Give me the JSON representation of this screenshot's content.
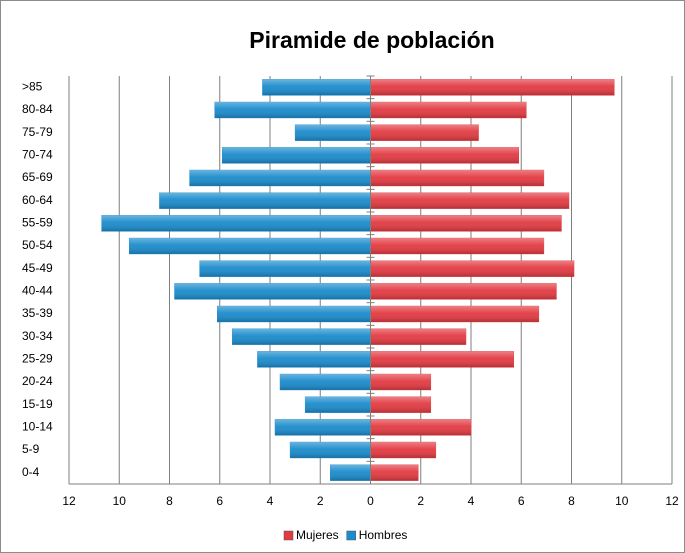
{
  "chart_data": {
    "type": "bar",
    "orientation": "horizontal",
    "title": "Piramide de población",
    "categories": [
      ">85",
      "80-84",
      "75-79",
      "70-74",
      "65-69",
      "60-64",
      "55-59",
      "50-54",
      "45-49",
      "40-44",
      "35-39",
      "30-34",
      "25-29",
      "20-24",
      "15-19",
      "10-14",
      "5-9",
      "0-4"
    ],
    "series": [
      {
        "name": "Mujeres",
        "color": "#e23a41",
        "values": [
          9.7,
          6.2,
          4.3,
          5.9,
          6.9,
          7.9,
          7.6,
          6.9,
          8.1,
          7.4,
          6.7,
          3.8,
          5.7,
          2.4,
          2.4,
          4.0,
          2.6,
          1.9
        ]
      },
      {
        "name": "Hombres",
        "color": "#1a8bcc",
        "values": [
          -4.3,
          -6.2,
          -3.0,
          -5.9,
          -7.2,
          -8.4,
          -10.7,
          -9.6,
          -6.8,
          -7.8,
          -6.1,
          -5.5,
          -4.5,
          -3.6,
          -2.6,
          -3.8,
          -3.2,
          -1.6
        ]
      }
    ],
    "xlim": [
      -12,
      12
    ],
    "xticks": [
      {
        "value": -12,
        "label": "12"
      },
      {
        "value": -10,
        "label": "10"
      },
      {
        "value": -8,
        "label": "8"
      },
      {
        "value": -6,
        "label": "6"
      },
      {
        "value": -4,
        "label": "4"
      },
      {
        "value": -2,
        "label": "2"
      },
      0,
      2,
      4,
      6,
      8,
      10,
      12
    ],
    "grid": true,
    "legend": "bottom"
  }
}
